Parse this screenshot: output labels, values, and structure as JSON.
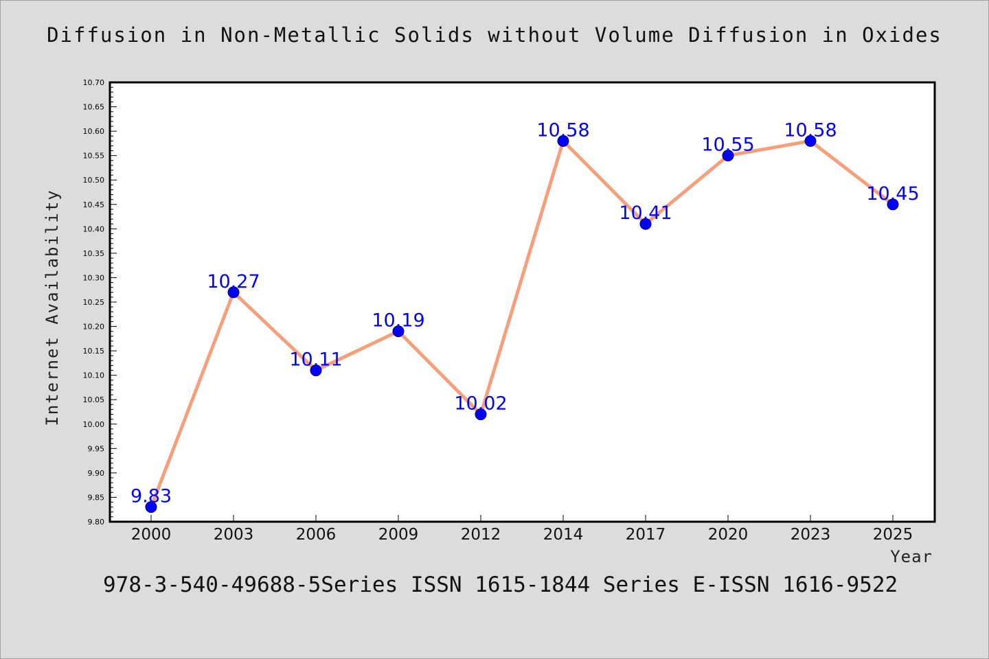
{
  "chart_data": {
    "type": "line",
    "title": "Diffusion in Non-Metallic Solids without Volume Diffusion in Oxides",
    "xlabel": "Year",
    "ylabel": "Internet Availability",
    "categories": [
      "2000",
      "2003",
      "2006",
      "2009",
      "2012",
      "2014",
      "2017",
      "2020",
      "2023",
      "2025"
    ],
    "series": [
      {
        "values": [
          9.83,
          10.27,
          10.11,
          10.19,
          10.02,
          10.58,
          10.41,
          10.55,
          10.58,
          10.45
        ],
        "data_labels": [
          "9.83",
          "10.27",
          "10.11",
          "10.19",
          "10.02",
          "10.58",
          "10.41",
          "10.55",
          "10.58",
          "10.45"
        ]
      }
    ],
    "ylim": [
      9.8,
      10.7
    ],
    "yticks": [
      "9.80",
      "9.85",
      "9.90",
      "9.95",
      "10.00",
      "10.05",
      "10.10",
      "10.15",
      "10.20",
      "10.25",
      "10.30",
      "10.35",
      "10.40",
      "10.45",
      "10.50",
      "10.55",
      "10.60",
      "10.65",
      "10.70"
    ],
    "grid": false,
    "line_color": "#f4a07c",
    "marker_color": "#0000ff",
    "label_color": "#0000ff",
    "plot_background": "#ffffff",
    "page_background": "#dcdcdc"
  },
  "footer": "978-3-540-49688-5Series ISSN 1615-1844 Series E-ISSN 1616-9522"
}
